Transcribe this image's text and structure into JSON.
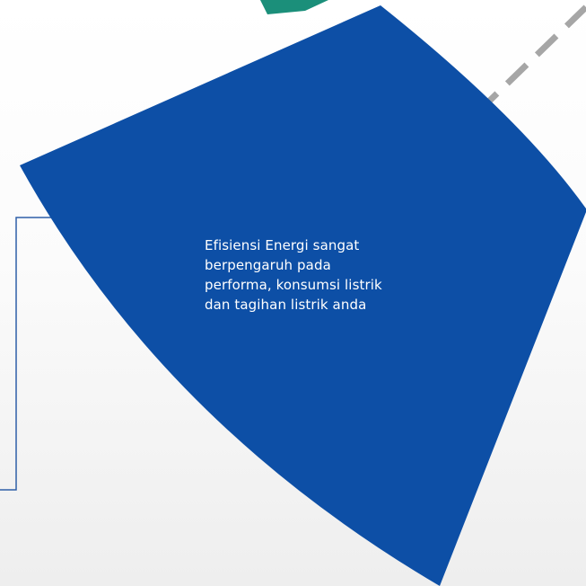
{
  "caption": {
    "lines": [
      "Efisiensi Energi sangat",
      "berpengaruh pada",
      "performa, konsumsi listrik",
      "dan tagihan listrik anda"
    ]
  },
  "colors": {
    "segment_fill": "#0d4fa6",
    "teal_segment": "#1b8f7a",
    "dashed_line": "#a6a6a6",
    "bracket_line": "#2e5fa8",
    "caption_text": "#ffffff"
  }
}
